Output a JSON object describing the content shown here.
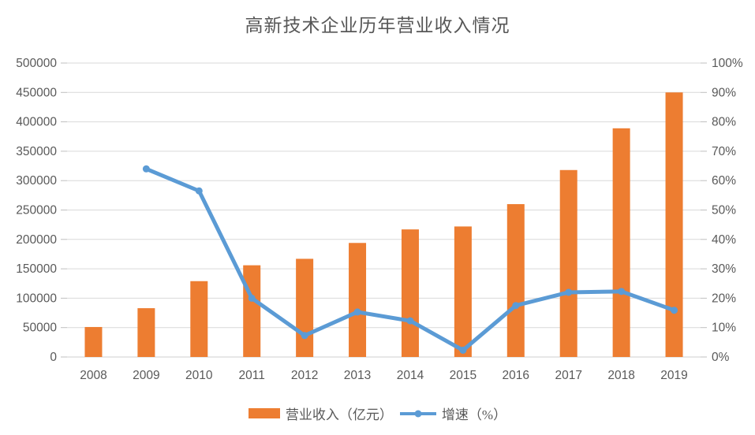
{
  "chart": {
    "title": "高新技术企业历年营业收入情况",
    "legend": {
      "revenue_label": "营业收入（亿元）",
      "growth_label": "增速（%）"
    }
  },
  "colors": {
    "bar": "#ED7D31",
    "line": "#5B9BD5",
    "grid": "#D9D9D9",
    "tick": "#BFBFBF",
    "zero_axis": "#CFCFCF",
    "axis_text": "#595959",
    "title_text": "#575757"
  },
  "chart_data": {
    "type": "bar",
    "subtype": "combo-bar-line-dual-axis",
    "title": "高新技术企业历年营业收入情况",
    "categories": [
      "2008",
      "2009",
      "2010",
      "2011",
      "2012",
      "2013",
      "2014",
      "2015",
      "2016",
      "2017",
      "2018",
      "2019"
    ],
    "series": [
      {
        "name": "营业收入（亿元）",
        "type": "bar",
        "axis": "left",
        "values": [
          51000,
          83000,
          129000,
          156000,
          167000,
          194000,
          217000,
          222000,
          260000,
          318000,
          389000,
          450000
        ]
      },
      {
        "name": "增速（%）",
        "type": "line",
        "axis": "right",
        "values": [
          null,
          64,
          56.5,
          20,
          7.3,
          15.3,
          12.3,
          2.3,
          17.5,
          22,
          22.3,
          15.9
        ]
      }
    ],
    "left_axis": {
      "min": 0,
      "max": 500000,
      "step": 50000,
      "tick_labels": [
        "0",
        "50000",
        "100000",
        "150000",
        "200000",
        "250000",
        "300000",
        "350000",
        "400000",
        "450000",
        "500000"
      ]
    },
    "right_axis": {
      "min": 0,
      "max": 100,
      "step": 10,
      "format": "percent",
      "tick_labels": [
        "0%",
        "10%",
        "20%",
        "30%",
        "40%",
        "50%",
        "60%",
        "70%",
        "80%",
        "90%",
        "100%"
      ]
    },
    "grid": true,
    "legend_position": "bottom",
    "xlabel": "",
    "ylabel": ""
  }
}
